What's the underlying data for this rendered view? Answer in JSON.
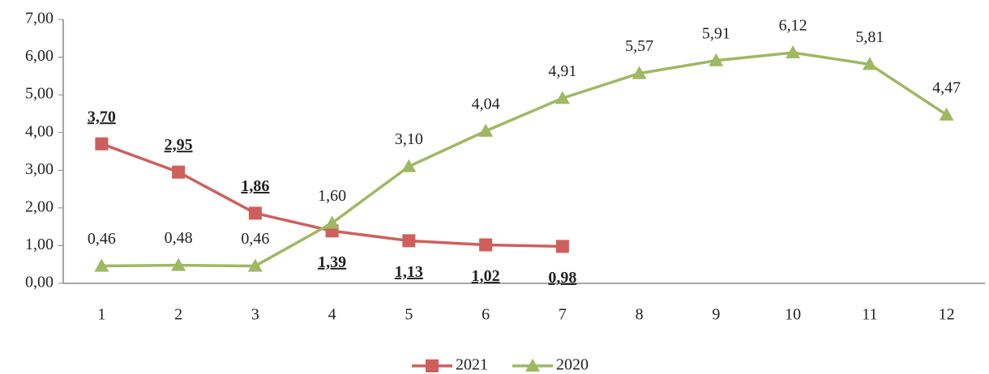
{
  "chart_data": {
    "type": "line",
    "categories": [
      "1",
      "2",
      "3",
      "4",
      "5",
      "6",
      "7",
      "8",
      "9",
      "10",
      "11",
      "12"
    ],
    "series": [
      {
        "name": "2021",
        "color": "#cf5f5c",
        "marker": "square",
        "values": [
          3.7,
          2.95,
          1.86,
          1.39,
          1.13,
          1.02,
          0.98,
          null,
          null,
          null,
          null,
          null
        ],
        "value_labels": [
          "3,70",
          "2,95",
          "1,86",
          "1,39",
          "1,13",
          "1,02",
          "0,98",
          null,
          null,
          null,
          null,
          null
        ]
      },
      {
        "name": "2020",
        "color": "#9fb862",
        "marker": "triangle",
        "values": [
          0.46,
          0.48,
          0.46,
          1.6,
          3.1,
          4.04,
          4.91,
          5.57,
          5.91,
          6.12,
          5.81,
          4.47
        ],
        "value_labels": [
          "0,46",
          "0,48",
          "0,46",
          "1,60",
          "3,10",
          "4,04",
          "4,91",
          "5,57",
          "5,91",
          "6,12",
          "5,81",
          "4,47"
        ]
      }
    ],
    "ylim": [
      0,
      7
    ],
    "yticks": [
      {
        "value": 0,
        "label": "0,00"
      },
      {
        "value": 1,
        "label": "1,00"
      },
      {
        "value": 2,
        "label": "2,00"
      },
      {
        "value": 3,
        "label": "3,00"
      },
      {
        "value": 4,
        "label": "4,00"
      },
      {
        "value": 5,
        "label": "5,00"
      },
      {
        "value": 6,
        "label": "6,00"
      },
      {
        "value": 7,
        "label": "7,00"
      }
    ],
    "grid": false,
    "legend": "bottom"
  }
}
